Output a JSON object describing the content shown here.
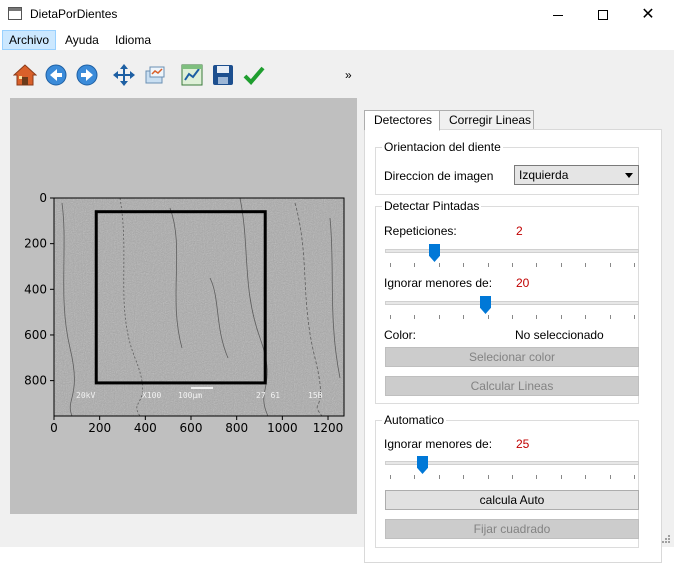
{
  "window": {
    "title": "DietaPorDientes"
  },
  "menu": {
    "items": [
      "Archivo",
      "Ayuda",
      "Idioma"
    ]
  },
  "toolbar": {
    "icons": [
      "home-icon",
      "back-icon",
      "forward-icon",
      "pan-icon",
      "configure-subplots-icon",
      "edit-axes-icon",
      "save-icon",
      "check-icon"
    ],
    "more": "»"
  },
  "image_axes": {
    "x_ticks": [
      "0",
      "200",
      "400",
      "600",
      "800",
      "1000",
      "1200"
    ],
    "y_ticks": [
      "0",
      "200",
      "400",
      "600",
      "800"
    ],
    "sem_caption": [
      "20kV",
      "X100",
      "100µm",
      "27 61",
      "15B"
    ],
    "rectangle": {
      "x0": 185,
      "y0": 60,
      "x1": 925,
      "y1": 810
    },
    "image_extent": {
      "width": 1270,
      "height": 955
    }
  },
  "tabs": [
    {
      "label": "Detectores",
      "active": true
    },
    {
      "label": "Corregir Lineas",
      "active": false
    }
  ],
  "orientacion": {
    "title": "Orientacion del diente",
    "direccion_label": "Direccion de imagen",
    "direccion_value": "Izquierda"
  },
  "pintadas": {
    "title": "Detectar Pintadas",
    "repeticiones_label": "Repeticiones:",
    "repeticiones_value": "2",
    "repeticiones_fraction": 0.18,
    "ignorar_label": "Ignorar menores de:",
    "ignorar_value": "20",
    "ignorar_fraction": 0.39,
    "color_label": "Color:",
    "color_value": "No seleccionado",
    "select_color_btn": "Selecionar color",
    "calcular_btn": "Calcular Lineas"
  },
  "automatico": {
    "title": "Automatico",
    "ignorar_label": "Ignorar menores de:",
    "ignorar_value": "25",
    "ignorar_fraction": 0.13,
    "calcula_btn": "calcula Auto",
    "fijar_btn": "Fijar cuadrado"
  },
  "colors": {
    "accent": "#0078d7",
    "value_red": "#c00000",
    "disabled_text": "#838383"
  }
}
